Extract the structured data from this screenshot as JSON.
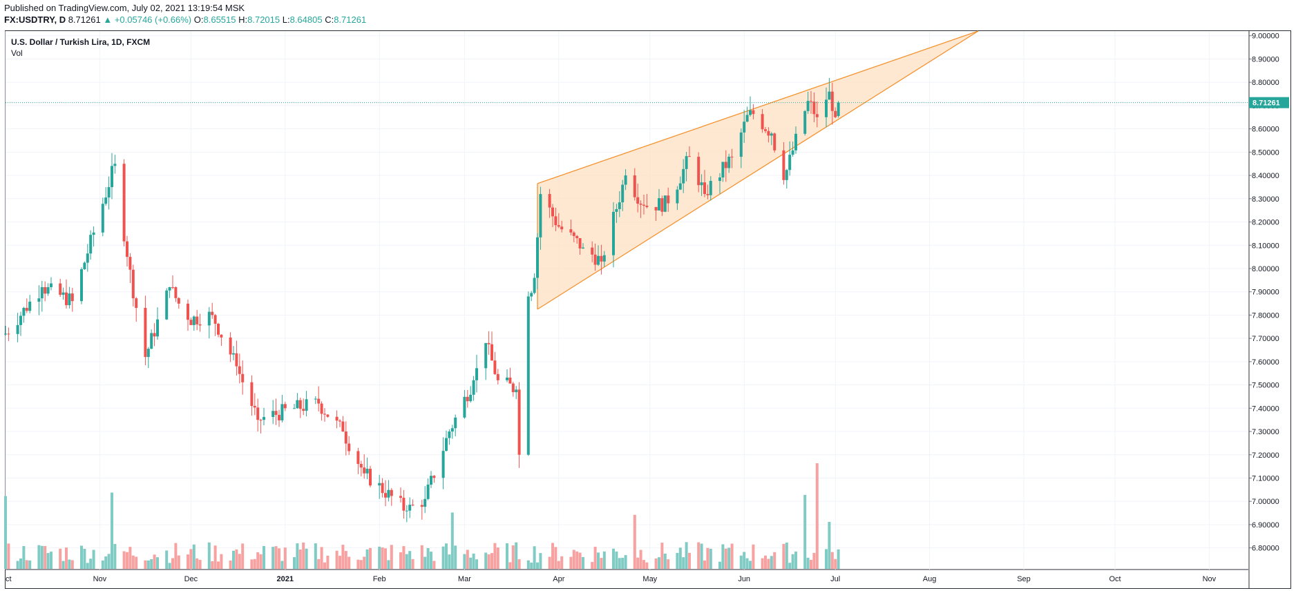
{
  "header": {
    "published": "Published on TradingView.com, July 02, 2021 13:19:54 MSK",
    "symbol": "FX:USDTRY, D",
    "last": "8.71261",
    "change": "+0.05746 (+0.66%)",
    "o_label": "O:",
    "o_value": "8.65515",
    "h_label": "H:",
    "h_value": "8.72015",
    "l_label": "L:",
    "l_value": "8.64805",
    "c_label": "C:",
    "c_value": "8.71261"
  },
  "legend": {
    "title": "U.S. Dollar / Turkish Lira, 1D, FXCM",
    "volume": "Vol"
  },
  "colors": {
    "up": "#26a69a",
    "down": "#ef5350",
    "vol_up": "#80cbc4",
    "vol_down": "#f7a1a1",
    "wedge_line": "#f5922f",
    "wedge_fill": "#ffe0c2",
    "price_label_bg": "#26a69a"
  },
  "chart_data": {
    "type": "candlestick",
    "title": "U.S. Dollar / Turkish Lira, 1D, FXCM",
    "x_tick_labels": [
      "ct",
      "Nov",
      "Dec",
      "2021",
      "Feb",
      "Mar",
      "Apr",
      "May",
      "Jun",
      "Jul",
      "Aug",
      "Sep",
      "Oct",
      "Nov"
    ],
    "y_tick_labels": [
      "9.00000",
      "8.90000",
      "8.80000",
      "8.70000",
      "8.60000",
      "8.50000",
      "8.40000",
      "8.30000",
      "8.20000",
      "8.10000",
      "8.00000",
      "7.90000",
      "7.80000",
      "7.70000",
      "7.60000",
      "7.50000",
      "7.40000",
      "7.30000",
      "7.20000",
      "7.10000",
      "7.00000",
      "6.90000",
      "6.80000"
    ],
    "ylim": [
      6.71,
      9.02
    ],
    "last_price": 8.71261,
    "last_price_label": "8.71261",
    "close_anchors": [
      {
        "date": "2020-10-01",
        "close": 7.72
      },
      {
        "date": "2020-10-13",
        "close": 7.92
      },
      {
        "date": "2020-10-23",
        "close": 7.86
      },
      {
        "date": "2020-11-06",
        "close": 8.45
      },
      {
        "date": "2020-11-10",
        "close": 8.05
      },
      {
        "date": "2020-11-16",
        "close": 7.62
      },
      {
        "date": "2020-11-24",
        "close": 7.92
      },
      {
        "date": "2020-11-30",
        "close": 7.78
      },
      {
        "date": "2020-12-08",
        "close": 7.8
      },
      {
        "date": "2020-12-16",
        "close": 7.58
      },
      {
        "date": "2020-12-23",
        "close": 7.35
      },
      {
        "date": "2021-01-04",
        "close": 7.4
      },
      {
        "date": "2021-01-12",
        "close": 7.42
      },
      {
        "date": "2021-01-20",
        "close": 7.3
      },
      {
        "date": "2021-01-27",
        "close": 7.12
      },
      {
        "date": "2021-02-10",
        "close": 6.96
      },
      {
        "date": "2021-02-16",
        "close": 7.01
      },
      {
        "date": "2021-02-24",
        "close": 7.3
      },
      {
        "date": "2021-03-04",
        "close": 7.52
      },
      {
        "date": "2021-03-08",
        "close": 7.68
      },
      {
        "date": "2021-03-12",
        "close": 7.52
      },
      {
        "date": "2021-03-18",
        "close": 7.48
      },
      {
        "date": "2021-03-19",
        "close": 7.2
      },
      {
        "date": "2021-03-22",
        "close": 7.88
      },
      {
        "date": "2021-03-24",
        "close": 7.96
      },
      {
        "date": "2021-03-26",
        "close": 8.32
      },
      {
        "date": "2021-04-01",
        "close": 8.18
      },
      {
        "date": "2021-04-09",
        "close": 8.09
      },
      {
        "date": "2021-04-15",
        "close": 8.03
      },
      {
        "date": "2021-04-23",
        "close": 8.4
      },
      {
        "date": "2021-04-29",
        "close": 8.27
      },
      {
        "date": "2021-05-07",
        "close": 8.28
      },
      {
        "date": "2021-05-14",
        "close": 8.48
      },
      {
        "date": "2021-05-19",
        "close": 8.32
      },
      {
        "date": "2021-05-28",
        "close": 8.48
      },
      {
        "date": "2021-06-03",
        "close": 8.68
      },
      {
        "date": "2021-06-10",
        "close": 8.58
      },
      {
        "date": "2021-06-14",
        "close": 8.38
      },
      {
        "date": "2021-06-22",
        "close": 8.72
      },
      {
        "date": "2021-06-25",
        "close": 8.65
      },
      {
        "date": "2021-06-29",
        "close": 8.76
      },
      {
        "date": "2021-07-01",
        "close": 8.65
      },
      {
        "date": "2021-07-02",
        "close": 8.71
      }
    ],
    "volume_spikes": [
      {
        "date": "2020-10-01",
        "relative": 0.62
      },
      {
        "date": "2020-11-05",
        "relative": 0.65
      },
      {
        "date": "2021-02-25",
        "relative": 0.48
      },
      {
        "date": "2021-04-26",
        "relative": 0.46
      },
      {
        "date": "2021-06-21",
        "relative": 0.63
      },
      {
        "date": "2021-06-25",
        "relative": 0.9
      },
      {
        "date": "2021-06-29",
        "relative": 0.4
      }
    ],
    "rising_wedge": {
      "upper": [
        {
          "date": "2021-03-25",
          "price": 8.365
        },
        {
          "date": "2021-08-17",
          "price": 9.02
        }
      ],
      "lower": [
        {
          "date": "2021-03-25",
          "price": 7.825
        },
        {
          "date": "2021-08-17",
          "price": 9.02
        }
      ]
    }
  }
}
